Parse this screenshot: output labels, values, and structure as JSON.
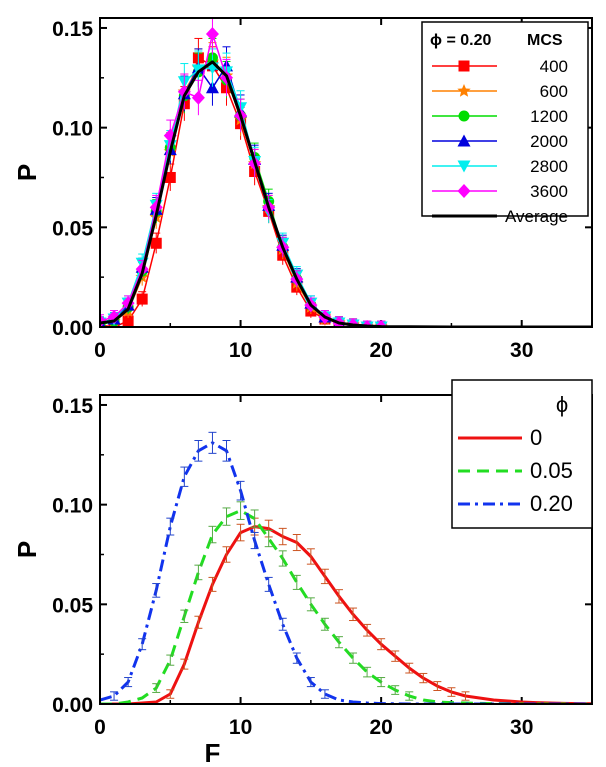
{
  "chart_data": [
    {
      "type": "line",
      "panel": "top",
      "xlabel": "",
      "ylabel": "P",
      "xlim": [
        0,
        35
      ],
      "ylim": [
        0,
        0.155
      ],
      "xticks": [
        "0",
        "10",
        "20",
        "30"
      ],
      "yticks": [
        "0.00",
        "0.05",
        "0.10",
        "0.15"
      ],
      "legend": {
        "position": "top-right",
        "header_left": "ϕ = 0.20",
        "header_right": "MCS"
      },
      "series": [
        {
          "name": "400",
          "color": "#ff0000",
          "marker": "square",
          "x": [
            0,
            1,
            2,
            3,
            4,
            5,
            6,
            7,
            8,
            9,
            10,
            11,
            12,
            13,
            14,
            15,
            16,
            17,
            18,
            19,
            20
          ],
          "y": [
            0.001,
            0.0,
            0.003,
            0.014,
            0.042,
            0.075,
            0.112,
            0.135,
            0.131,
            0.12,
            0.102,
            0.078,
            0.058,
            0.036,
            0.02,
            0.008,
            0.004,
            0.002,
            0.001,
            0.0,
            0.0
          ]
        },
        {
          "name": "600",
          "color": "#ff8000",
          "marker": "star",
          "x": [
            0,
            1,
            2,
            3,
            4,
            5,
            6,
            7,
            8,
            9,
            10,
            11,
            12,
            13,
            14,
            15,
            16,
            17,
            18,
            19,
            20
          ],
          "y": [
            0.002,
            0.003,
            0.008,
            0.025,
            0.055,
            0.088,
            0.118,
            0.13,
            0.133,
            0.126,
            0.104,
            0.082,
            0.06,
            0.039,
            0.022,
            0.01,
            0.004,
            0.002,
            0.001,
            0.0,
            0.0
          ]
        },
        {
          "name": "1200",
          "color": "#00dd00",
          "marker": "circle",
          "x": [
            0,
            1,
            2,
            3,
            4,
            5,
            6,
            7,
            8,
            9,
            10,
            11,
            12,
            13,
            14,
            15,
            16,
            17,
            18,
            19,
            20
          ],
          "y": [
            0.001,
            0.003,
            0.01,
            0.028,
            0.058,
            0.09,
            0.116,
            0.128,
            0.135,
            0.124,
            0.106,
            0.085,
            0.063,
            0.04,
            0.024,
            0.011,
            0.005,
            0.002,
            0.001,
            0.0,
            0.0
          ]
        },
        {
          "name": "2000",
          "color": "#0000dd",
          "marker": "triangle-up",
          "x": [
            0,
            1,
            2,
            3,
            4,
            5,
            6,
            7,
            8,
            9,
            10,
            11,
            12,
            13,
            14,
            15,
            16,
            17,
            18,
            19,
            20
          ],
          "y": [
            0.002,
            0.004,
            0.011,
            0.03,
            0.059,
            0.089,
            0.117,
            0.13,
            0.12,
            0.131,
            0.108,
            0.084,
            0.061,
            0.041,
            0.025,
            0.012,
            0.005,
            0.002,
            0.001,
            0.0,
            0.0
          ]
        },
        {
          "name": "2800",
          "color": "#00eeee",
          "marker": "triangle-down",
          "x": [
            0,
            1,
            2,
            3,
            4,
            5,
            6,
            7,
            8,
            9,
            10,
            11,
            12,
            13,
            14,
            15,
            16,
            17,
            18,
            19,
            20
          ],
          "y": [
            0.002,
            0.004,
            0.012,
            0.032,
            0.061,
            0.091,
            0.123,
            0.129,
            0.13,
            0.128,
            0.11,
            0.083,
            0.058,
            0.042,
            0.026,
            0.012,
            0.005,
            0.002,
            0.001,
            0.0,
            0.0
          ]
        },
        {
          "name": "3600",
          "color": "#ff00ff",
          "marker": "diamond",
          "x": [
            0,
            1,
            2,
            3,
            4,
            5,
            6,
            7,
            8,
            9,
            10,
            11,
            12,
            13,
            14,
            15,
            16,
            17,
            18,
            19,
            20
          ],
          "y": [
            0.003,
            0.005,
            0.012,
            0.029,
            0.06,
            0.096,
            0.118,
            0.115,
            0.147,
            0.125,
            0.106,
            0.082,
            0.06,
            0.04,
            0.024,
            0.011,
            0.005,
            0.002,
            0.001,
            0.0,
            0.0
          ]
        },
        {
          "name": "Average",
          "color": "#000000",
          "marker": "none",
          "x": [
            0,
            1,
            2,
            3,
            4,
            5,
            6,
            7,
            8,
            9,
            10,
            11,
            12,
            13,
            14,
            15,
            16,
            17,
            18,
            19,
            20,
            22,
            25,
            30,
            35
          ],
          "y": [
            0.002,
            0.003,
            0.009,
            0.027,
            0.056,
            0.088,
            0.116,
            0.128,
            0.133,
            0.126,
            0.106,
            0.083,
            0.06,
            0.04,
            0.024,
            0.011,
            0.005,
            0.002,
            0.001,
            0.0005,
            0.0002,
            0.0001,
            0.0,
            0.0,
            0.0
          ]
        }
      ]
    },
    {
      "type": "line",
      "panel": "bottom",
      "xlabel": "F",
      "ylabel": "P",
      "xlim": [
        0,
        35
      ],
      "ylim": [
        0,
        0.155
      ],
      "xticks": [
        "0",
        "10",
        "20",
        "30"
      ],
      "yticks": [
        "0.00",
        "0.05",
        "0.10",
        "0.15"
      ],
      "legend": {
        "position": "top-right",
        "header": "ϕ"
      },
      "series": [
        {
          "name": "0",
          "color": "#ee1111",
          "dash": "solid",
          "x": [
            0,
            1,
            2,
            3,
            4,
            5,
            6,
            7,
            8,
            9,
            10,
            11,
            12,
            13,
            14,
            15,
            16,
            17,
            18,
            19,
            20,
            21,
            22,
            23,
            24,
            25,
            26,
            27,
            28,
            29,
            30,
            31,
            32,
            33,
            34,
            35
          ],
          "y": [
            0.0,
            0.0,
            0.0,
            0.0005,
            0.001,
            0.005,
            0.02,
            0.041,
            0.06,
            0.075,
            0.086,
            0.089,
            0.088,
            0.084,
            0.081,
            0.074,
            0.064,
            0.054,
            0.045,
            0.037,
            0.03,
            0.024,
            0.018,
            0.013,
            0.009,
            0.006,
            0.004,
            0.003,
            0.002,
            0.0015,
            0.001,
            0.0007,
            0.0005,
            0.0003,
            0.0002,
            0.0001
          ]
        },
        {
          "name": "0.05",
          "color": "#22dd22",
          "dash": "dashed",
          "x": [
            0,
            1,
            2,
            3,
            4,
            5,
            6,
            7,
            8,
            9,
            10,
            11,
            12,
            13,
            14,
            15,
            16,
            17,
            18,
            19,
            20,
            21,
            22,
            23,
            24,
            25,
            26,
            27,
            28,
            29,
            30,
            31,
            32,
            33,
            34,
            35
          ],
          "y": [
            0.0,
            0.0,
            0.001,
            0.003,
            0.008,
            0.022,
            0.044,
            0.066,
            0.085,
            0.094,
            0.097,
            0.093,
            0.083,
            0.073,
            0.061,
            0.05,
            0.04,
            0.031,
            0.023,
            0.016,
            0.011,
            0.007,
            0.004,
            0.002,
            0.001,
            0.0007,
            0.0005,
            0.0003,
            0.0002,
            0.0001,
            0.0,
            0.0,
            0.0,
            0.0,
            0.0,
            0.0
          ]
        },
        {
          "name": "0.20",
          "color": "#1133ee",
          "dash": "dashdot",
          "x": [
            0,
            1,
            2,
            3,
            4,
            5,
            6,
            7,
            8,
            9,
            10,
            11,
            12,
            13,
            14,
            15,
            16,
            17,
            18,
            19,
            20,
            21,
            22,
            23,
            24,
            25,
            26,
            27,
            28,
            29,
            30,
            31,
            32,
            33,
            34,
            35
          ],
          "y": [
            0.002,
            0.004,
            0.011,
            0.03,
            0.057,
            0.089,
            0.114,
            0.127,
            0.131,
            0.127,
            0.107,
            0.082,
            0.06,
            0.04,
            0.023,
            0.011,
            0.005,
            0.002,
            0.001,
            0.0005,
            0.0002,
            0.0001,
            0.0,
            0.0,
            0.0,
            0.0,
            0.0,
            0.0,
            0.0,
            0.0,
            0.0,
            0.0,
            0.0,
            0.0,
            0.0,
            0.0
          ]
        }
      ]
    }
  ]
}
